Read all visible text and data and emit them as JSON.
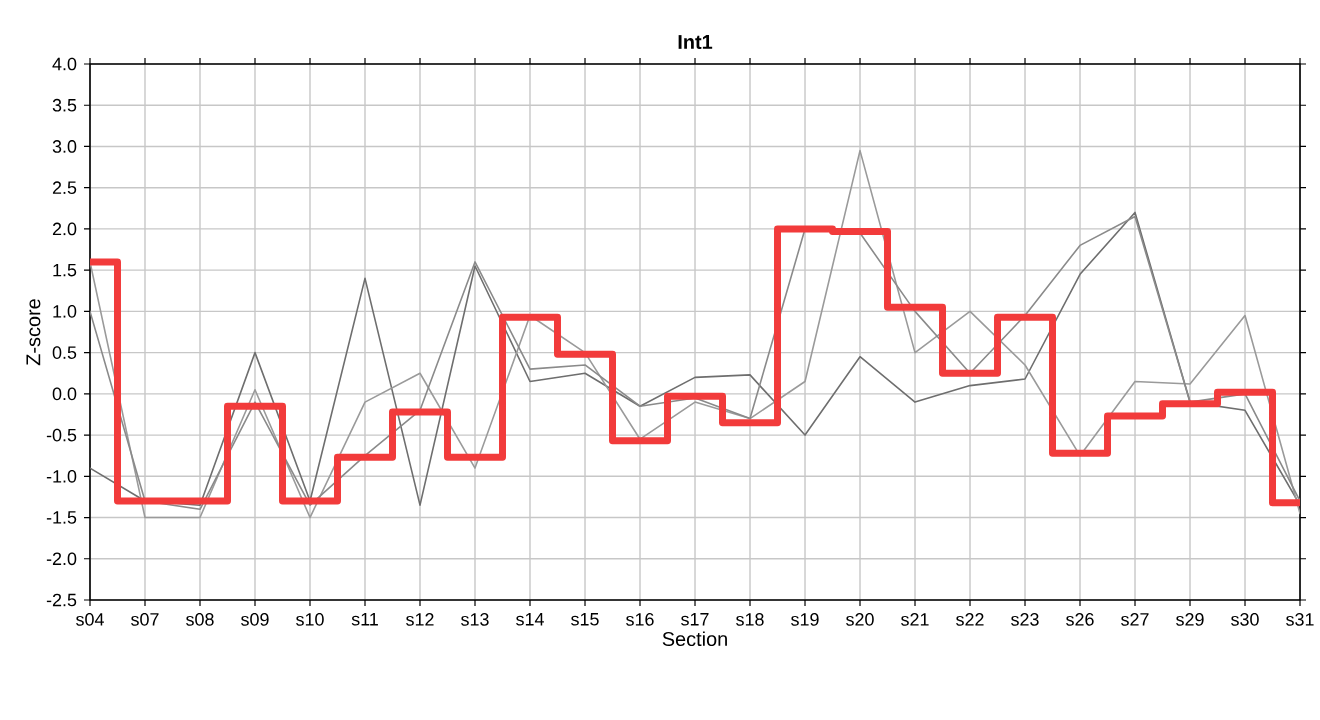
{
  "chart_data": {
    "type": "line",
    "title": "Int1",
    "xlabel": "Section",
    "ylabel": "Z-score",
    "categories": [
      "s04",
      "s07",
      "s08",
      "s09",
      "s10",
      "s11",
      "s12",
      "s13",
      "s14",
      "s15",
      "s16",
      "s17",
      "s18",
      "s19",
      "s20",
      "s21",
      "s22",
      "s23",
      "s26",
      "s27",
      "s29",
      "s30",
      "s31"
    ],
    "series": [
      {
        "color": "#6e6e6e",
        "values": [
          -0.9,
          -1.3,
          -1.35,
          0.5,
          -1.3,
          1.4,
          -1.35,
          1.55,
          0.15,
          0.25,
          -0.15,
          0.2,
          0.23,
          -0.5,
          0.45,
          -0.1,
          0.1,
          0.18,
          1.45,
          2.2,
          -0.1,
          -0.2,
          -1.35
        ]
      },
      {
        "color": "#9a9a9a",
        "values": [
          1.6,
          -1.5,
          -1.5,
          0.05,
          -1.5,
          -0.1,
          0.25,
          -0.9,
          0.95,
          0.5,
          -0.55,
          -0.1,
          -0.3,
          0.15,
          2.95,
          0.5,
          1.0,
          0.35,
          -0.75,
          0.15,
          0.12,
          0.95,
          -1.45
        ]
      },
      {
        "color": "#8a8a8a",
        "values": [
          1.0,
          -1.3,
          -1.4,
          -0.1,
          -1.35,
          -0.75,
          -0.2,
          1.6,
          0.3,
          0.35,
          -0.15,
          -0.05,
          -0.3,
          2.0,
          1.95,
          1.0,
          0.25,
          0.95,
          1.8,
          2.15,
          -0.1,
          0.0,
          -1.3
        ]
      },
      {
        "type": "step",
        "color": "#f23b3b",
        "values": [
          1.6,
          -1.3,
          -1.3,
          -0.15,
          -1.3,
          -0.77,
          -0.22,
          -0.77,
          0.93,
          0.48,
          -0.57,
          -0.03,
          -0.35,
          2.0,
          1.97,
          1.05,
          0.25,
          0.93,
          -0.72,
          -0.27,
          -0.12,
          0.02,
          -1.32
        ]
      }
    ],
    "ylim": [
      -2.5,
      4.0
    ],
    "yticks": [
      {
        "value": -2.5,
        "label": "-2.5"
      },
      {
        "value": -2.0,
        "label": "-2.0"
      },
      {
        "value": -1.5,
        "label": "-1.5"
      },
      {
        "value": -1.0,
        "label": "-1.0"
      },
      {
        "value": -0.5,
        "label": "-0.5"
      },
      {
        "value": 0,
        "label": "0.0"
      },
      {
        "value": 0.5,
        "label": "0.5"
      },
      {
        "value": 1.0,
        "label": "1.0"
      },
      {
        "value": 1.5,
        "label": "1.5"
      },
      {
        "value": 2.0,
        "label": "2.0"
      },
      {
        "value": 2.5,
        "label": "2.5"
      },
      {
        "value": 3.0,
        "label": "3.0"
      },
      {
        "value": 3.5,
        "label": "3.5"
      },
      {
        "value": 4.0,
        "label": "4.0"
      }
    ],
    "grid": true
  }
}
